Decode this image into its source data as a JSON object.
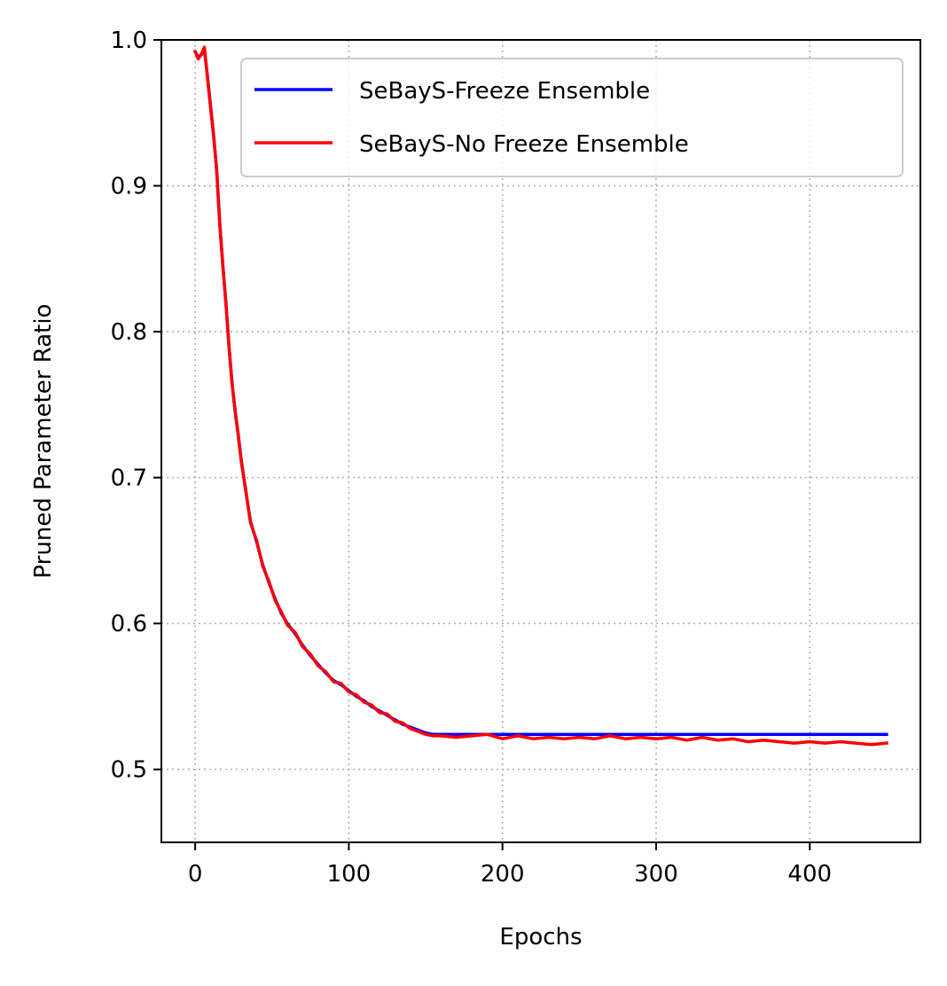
{
  "chart_data": {
    "type": "line",
    "title": "",
    "xlabel": "Epochs",
    "ylabel": "Pruned Parameter Ratio",
    "xlim": [
      -22,
      472
    ],
    "ylim": [
      0.45,
      1.0
    ],
    "xticks": [
      0,
      100,
      200,
      300,
      400
    ],
    "xtick_labels": [
      "0",
      "100",
      "200",
      "300",
      "400"
    ],
    "yticks": [
      0.5,
      0.6,
      0.7,
      0.8,
      0.9,
      1.0
    ],
    "ytick_labels": [
      "0.5",
      "0.6",
      "0.7",
      "0.8",
      "0.9",
      "1.0"
    ],
    "grid": true,
    "legend_position": "top-right",
    "series": [
      {
        "name": "SeBayS-Freeze Ensemble",
        "color": "#0000ff",
        "x": [
          0,
          2,
          4,
          6,
          8,
          10,
          12,
          14,
          16,
          18,
          20,
          22,
          24,
          26,
          28,
          30,
          33,
          36,
          40,
          44,
          48,
          52,
          56,
          60,
          65,
          70,
          75,
          80,
          85,
          90,
          95,
          100,
          105,
          110,
          115,
          120,
          125,
          130,
          135,
          140,
          145,
          150,
          155,
          160,
          170,
          180,
          190,
          200,
          220,
          250,
          300,
          350,
          400,
          450
        ],
        "y": [
          0.992,
          0.988,
          0.99,
          0.993,
          0.975,
          0.955,
          0.935,
          0.91,
          0.875,
          0.845,
          0.82,
          0.79,
          0.765,
          0.745,
          0.73,
          0.712,
          0.69,
          0.67,
          0.656,
          0.64,
          0.628,
          0.617,
          0.607,
          0.6,
          0.593,
          0.585,
          0.578,
          0.572,
          0.566,
          0.561,
          0.558,
          0.554,
          0.55,
          0.547,
          0.543,
          0.54,
          0.537,
          0.534,
          0.531,
          0.529,
          0.527,
          0.525,
          0.524,
          0.524,
          0.524,
          0.524,
          0.524,
          0.524,
          0.524,
          0.524,
          0.524,
          0.524,
          0.524,
          0.524
        ]
      },
      {
        "name": "SeBayS-No Freeze Ensemble",
        "color": "#ff0000",
        "x": [
          0,
          2,
          4,
          6,
          8,
          10,
          12,
          14,
          16,
          18,
          20,
          22,
          24,
          26,
          28,
          30,
          33,
          36,
          40,
          44,
          48,
          52,
          56,
          60,
          65,
          70,
          75,
          80,
          85,
          90,
          95,
          100,
          105,
          110,
          115,
          120,
          125,
          130,
          135,
          140,
          145,
          150,
          155,
          160,
          170,
          180,
          190,
          200,
          210,
          220,
          230,
          240,
          250,
          260,
          270,
          280,
          290,
          300,
          310,
          320,
          330,
          340,
          350,
          360,
          370,
          380,
          390,
          400,
          410,
          420,
          430,
          440,
          450
        ],
        "y": [
          0.992,
          0.987,
          0.99,
          0.995,
          0.974,
          0.954,
          0.934,
          0.911,
          0.874,
          0.846,
          0.819,
          0.791,
          0.764,
          0.746,
          0.729,
          0.711,
          0.691,
          0.669,
          0.657,
          0.639,
          0.629,
          0.616,
          0.608,
          0.599,
          0.594,
          0.584,
          0.579,
          0.571,
          0.567,
          0.56,
          0.559,
          0.553,
          0.551,
          0.546,
          0.544,
          0.539,
          0.538,
          0.533,
          0.532,
          0.528,
          0.526,
          0.524,
          0.523,
          0.523,
          0.522,
          0.523,
          0.524,
          0.521,
          0.523,
          0.521,
          0.522,
          0.521,
          0.522,
          0.521,
          0.523,
          0.521,
          0.522,
          0.521,
          0.522,
          0.52,
          0.522,
          0.52,
          0.521,
          0.519,
          0.52,
          0.519,
          0.518,
          0.519,
          0.518,
          0.519,
          0.518,
          0.517,
          0.518
        ]
      }
    ]
  }
}
